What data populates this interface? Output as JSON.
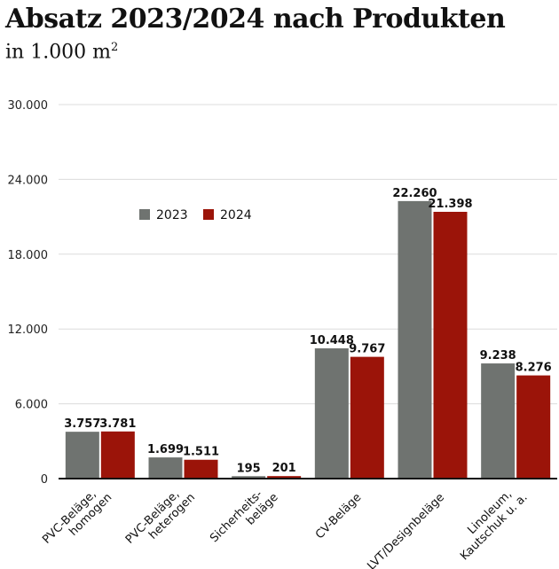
{
  "chart_data": {
    "type": "bar",
    "title": "Absatz 2023/2024 nach Produkten",
    "subtitle": "in 1.000 m",
    "subtitle_sup": "2",
    "categories": [
      [
        "PVC-Beläge,",
        "homogen"
      ],
      [
        "PVC-Beläge,",
        "heterogen"
      ],
      [
        "Sicherheits-",
        "beläge"
      ],
      [
        "CV-Beläge"
      ],
      [
        "LVT/Designbeläge"
      ],
      [
        "Linoleum,",
        "Kautschuk u. a."
      ]
    ],
    "series": [
      {
        "name": "2023",
        "color": "#6f7370",
        "values": [
          3757,
          1699,
          195,
          10448,
          22260,
          9238
        ],
        "labels": [
          "3.757",
          "1.699",
          "195",
          "10.448",
          "22.260",
          "9.238"
        ]
      },
      {
        "name": "2024",
        "color": "#9b1409",
        "values": [
          3781,
          1511,
          201,
          9767,
          21398,
          8276
        ],
        "labels": [
          "3.781",
          "1.511",
          "201",
          "9.767",
          "21.398",
          "8.276"
        ]
      }
    ],
    "ylim": [
      0,
      30000
    ],
    "yticks": [
      0,
      6000,
      12000,
      18000,
      24000,
      30000
    ],
    "ytick_labels": [
      "0",
      "6.000",
      "12.000",
      "18.000",
      "24.000",
      "30.000"
    ],
    "grid": true,
    "legend": "upper-left"
  }
}
